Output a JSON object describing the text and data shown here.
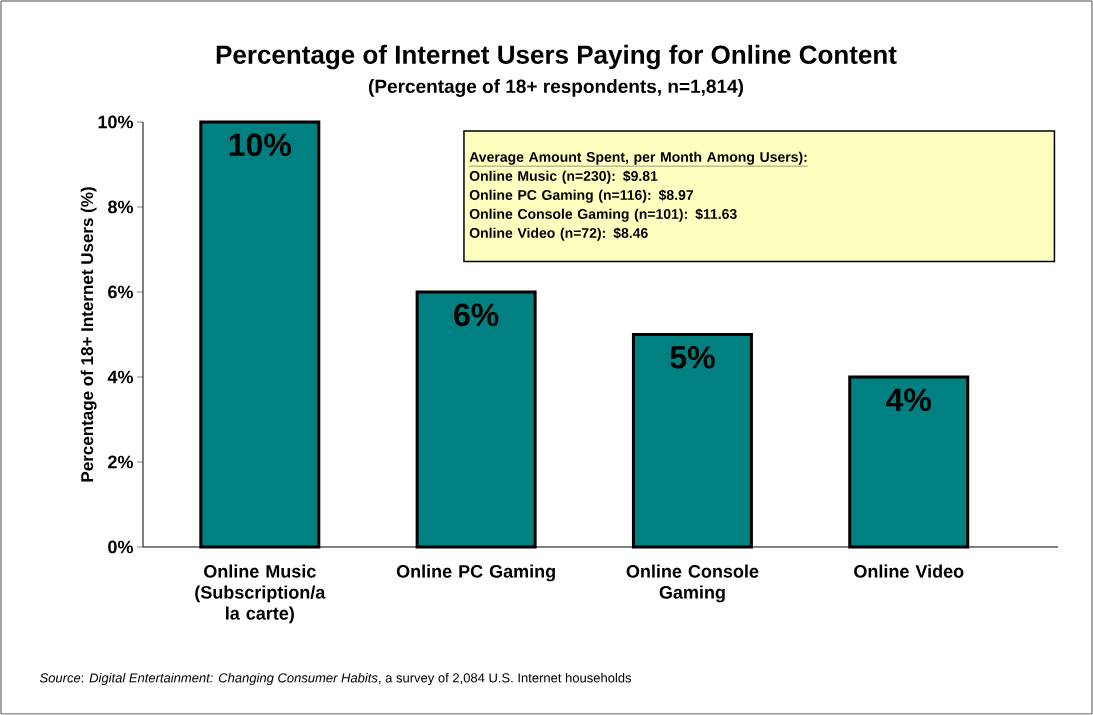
{
  "chart_data": {
    "type": "bar",
    "title": "Percentage of Internet Users Paying for Online Content",
    "subtitle": "(Percentage of 18+ respondents, n=1,814)",
    "ylabel": "Percentage of 18+ Internet Users (%)",
    "categories": [
      "Online Music (Subscription/a la carte)",
      "Online PC Gaming",
      "Online Console Gaming",
      "Online Video"
    ],
    "values": [
      10,
      6,
      5,
      4
    ],
    "value_labels": [
      "10%",
      "6%",
      "5%",
      "4%"
    ],
    "color": "#008080",
    "ylim": [
      0,
      10
    ],
    "yticks": [
      {
        "value": 0,
        "label": "0%"
      },
      {
        "value": 2,
        "label": "2%"
      },
      {
        "value": 4,
        "label": "4%"
      },
      {
        "value": 6,
        "label": "6%"
      },
      {
        "value": 8,
        "label": "8%"
      },
      {
        "value": 10,
        "label": "10%"
      }
    ],
    "annotations": [
      "Average Amount Spent, per Month Among Users):",
      "Online Music (n=230): $9.81",
      "Online PC Gaming (n=116): $8.97",
      "Online Console Gaming (n=101): $11.63",
      "Online Video (n=72): $8.46",
      "*Source*: *Digital Entertainment: Changing Consumer Habits*, a survey of 2,084 U.S. Internet households"
    ]
  }
}
